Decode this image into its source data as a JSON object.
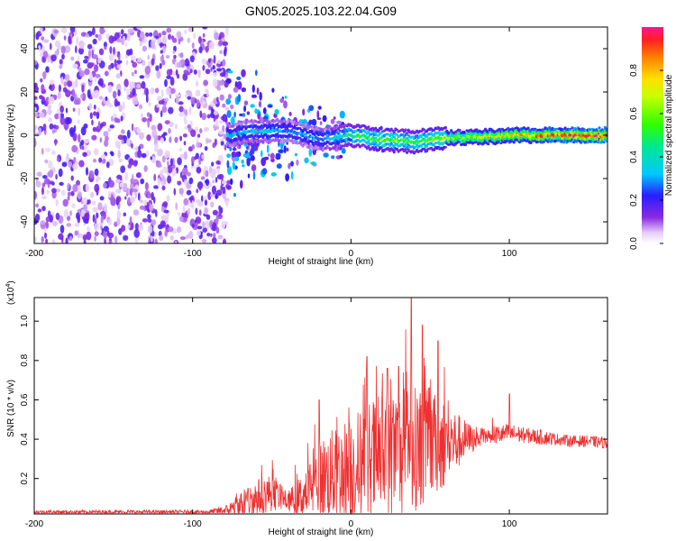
{
  "title": "GN05.2025.103.22.04.G09",
  "colors": {
    "snr_line": "#ee3030",
    "frame": "#000000",
    "background": "#ffffff"
  },
  "chart_data": [
    {
      "type": "heatmap",
      "name": "spectrogram",
      "xlabel": "Height of straight line (km)",
      "ylabel": "Frequency (Hz)",
      "xlim": [
        -200,
        162
      ],
      "ylim": [
        -50,
        50
      ],
      "x_ticks": [
        -200,
        -100,
        0,
        100
      ],
      "x_tick_labels": [
        "-200",
        "-100",
        "0",
        "100"
      ],
      "y_ticks": [
        -40,
        -20,
        0,
        20,
        40
      ],
      "y_tick_labels": [
        "-40",
        "-20",
        "0",
        "20",
        "40"
      ],
      "noise_region_km": [
        -200,
        -78
      ],
      "ridge": {
        "description": "dominant frequency ridge",
        "x": [
          -78,
          -60,
          -40,
          -20,
          0,
          20,
          40,
          60,
          80,
          100,
          120,
          140,
          162
        ],
        "freq_hz": [
          0,
          2,
          2,
          -2,
          0,
          -2,
          -3,
          -1,
          -1,
          0,
          0,
          0,
          0
        ],
        "amplitude": [
          0.3,
          0.35,
          0.3,
          0.3,
          0.45,
          0.55,
          0.5,
          0.6,
          0.7,
          0.75,
          0.85,
          0.9,
          0.95
        ]
      },
      "colorbar": {
        "label": "Normalized spectral amplitude",
        "range": [
          0,
          1
        ],
        "ticks": [
          0,
          0.2,
          0.4,
          0.6,
          0.8
        ],
        "tick_labels": [
          "0.0",
          "0.2",
          "0.4",
          "0.6",
          "0.8"
        ]
      }
    },
    {
      "type": "line",
      "name": "snr",
      "xlabel": "Height of straight line (km)",
      "ylabel": "SNR (10 * v/v)",
      "scale_label": "(x10",
      "scale_exponent": "4",
      "scale_suffix": ")",
      "xlim": [
        -200,
        162
      ],
      "ylim": [
        0.02,
        1.12
      ],
      "x_ticks": [
        -200,
        -100,
        0,
        100
      ],
      "x_tick_labels": [
        "-200",
        "-100",
        "0",
        "100"
      ],
      "y_ticks": [
        0.2,
        0.4,
        0.6,
        0.8,
        1.0
      ],
      "y_tick_labels": [
        "0.2",
        "0.4",
        "0.6",
        "0.8",
        "1.0"
      ],
      "envelope": {
        "x": [
          -200,
          -90,
          -78,
          -70,
          -60,
          -50,
          -45,
          -40,
          -30,
          -20,
          -10,
          0,
          10,
          20,
          30,
          40,
          50,
          60,
          70,
          80,
          90,
          100,
          110,
          120,
          130,
          140,
          150,
          162
        ],
        "base": [
          0.03,
          0.03,
          0.04,
          0.06,
          0.09,
          0.12,
          0.1,
          0.08,
          0.1,
          0.18,
          0.2,
          0.22,
          0.24,
          0.28,
          0.3,
          0.32,
          0.34,
          0.36,
          0.38,
          0.4,
          0.42,
          0.43,
          0.42,
          0.41,
          0.4,
          0.39,
          0.39,
          0.38
        ],
        "amp": [
          0.01,
          0.01,
          0.03,
          0.08,
          0.12,
          0.12,
          0.08,
          0.06,
          0.15,
          0.25,
          0.3,
          0.35,
          0.4,
          0.42,
          0.42,
          0.4,
          0.35,
          0.28,
          0.15,
          0.06,
          0.05,
          0.05,
          0.04,
          0.04,
          0.03,
          0.03,
          0.03,
          0.03
        ]
      },
      "peaks": [
        {
          "x": -20,
          "y": 0.6
        },
        {
          "x": 10,
          "y": 0.82
        },
        {
          "x": 23,
          "y": 0.76
        },
        {
          "x": 30,
          "y": 0.77
        },
        {
          "x": 38,
          "y": 1.12
        },
        {
          "x": 45,
          "y": 0.98
        },
        {
          "x": 55,
          "y": 0.9
        },
        {
          "x": 100,
          "y": 0.63
        }
      ]
    }
  ]
}
